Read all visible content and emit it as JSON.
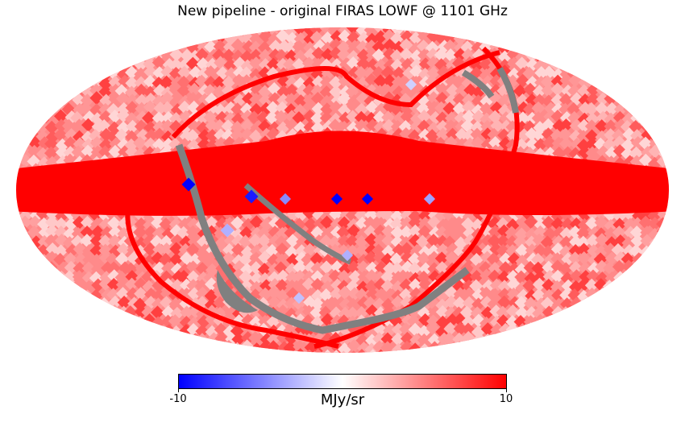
{
  "title": "New pipeline - original FIRAS LOWF @ 1101 GHz",
  "projection": "mollweide",
  "colormap": [
    "#0000ff",
    "#ffffff",
    "#ff0000"
  ],
  "masked_color": "#808080",
  "colorbar": {
    "min": -10,
    "max": 10,
    "min_label": "-10",
    "max_label": "10",
    "unit": "MJy/sr"
  }
}
